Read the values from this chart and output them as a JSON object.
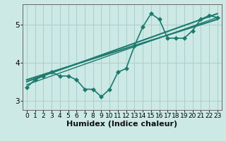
{
  "title": "",
  "xlabel": "Humidex (Indice chaleur)",
  "ylabel": "",
  "bg_color": "#cce9e5",
  "grid_color": "#aacfcb",
  "line_color": "#1c7a6e",
  "xlim": [
    -0.5,
    23.5
  ],
  "ylim": [
    2.75,
    5.55
  ],
  "yticks": [
    3,
    4,
    5
  ],
  "xticks": [
    0,
    1,
    2,
    3,
    4,
    5,
    6,
    7,
    8,
    9,
    10,
    11,
    12,
    13,
    14,
    15,
    16,
    17,
    18,
    19,
    20,
    21,
    22,
    23
  ],
  "data_line": {
    "x": [
      0,
      1,
      2,
      3,
      4,
      5,
      6,
      7,
      8,
      9,
      10,
      11,
      12,
      13,
      14,
      15,
      16,
      17,
      18,
      19,
      20,
      21,
      22,
      23
    ],
    "y": [
      3.35,
      3.55,
      3.65,
      3.75,
      3.65,
      3.65,
      3.55,
      3.3,
      3.3,
      3.1,
      3.3,
      3.75,
      3.85,
      4.45,
      4.95,
      5.3,
      5.15,
      4.65,
      4.65,
      4.65,
      4.85,
      5.15,
      5.25,
      5.2
    ],
    "linewidth": 1.2,
    "markersize": 3.0
  },
  "trend_lines": [
    {
      "x0": 0,
      "y0": 3.5,
      "x1": 23,
      "y1": 5.3,
      "linewidth": 1.5
    },
    {
      "x0": 0,
      "y0": 3.55,
      "x1": 23,
      "y1": 5.15,
      "linewidth": 1.5
    },
    {
      "x0": 0,
      "y0": 3.42,
      "x1": 23,
      "y1": 5.2,
      "linewidth": 1.0
    }
  ],
  "xlabel_fontsize": 8,
  "tick_fontsize": 6.5,
  "ytick_fontsize": 7.5,
  "figsize": [
    3.2,
    2.0
  ],
  "dpi": 100
}
